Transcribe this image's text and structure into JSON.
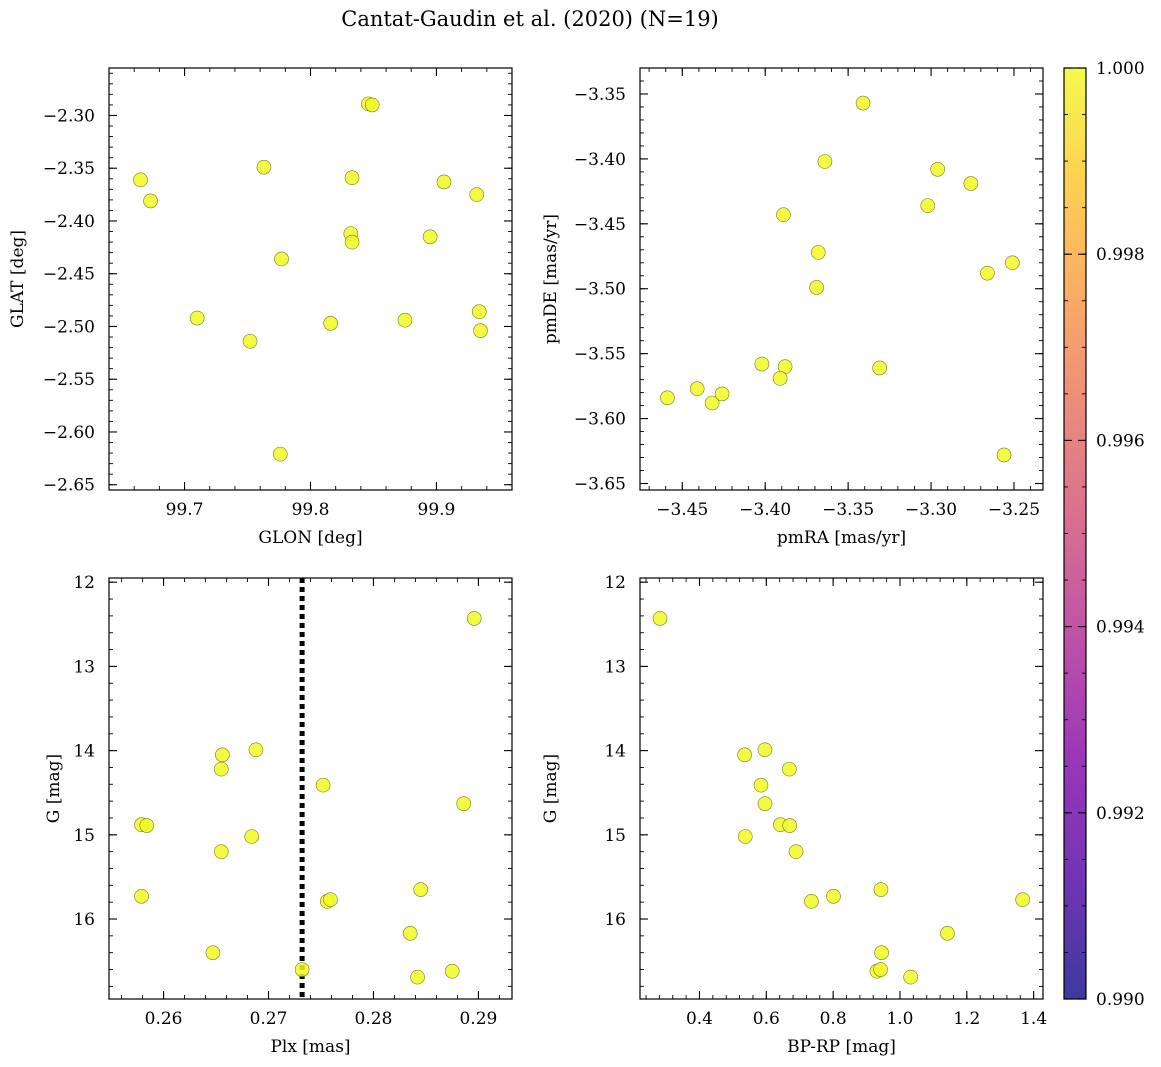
{
  "figure": {
    "title": "Cantat-Gaudin et al. (2020) (N=19)"
  },
  "colors": {
    "marker": "#f0f921",
    "marker_edge": "#7a7a2a",
    "frame": "#000000"
  },
  "chart_data": [
    {
      "type": "scatter",
      "xlabel": "GLON [deg]",
      "ylabel": "GLAT [deg]",
      "xlim": [
        99.64,
        99.96
      ],
      "ylim": [
        -2.655,
        -2.255
      ],
      "xticks": [
        99.7,
        99.8,
        99.9
      ],
      "xtick_labels": [
        "99.7",
        "99.8",
        "99.9"
      ],
      "yticks": [
        -2.3,
        -2.35,
        -2.4,
        -2.45,
        -2.5,
        -2.55,
        -2.6,
        -2.65
      ],
      "ytick_labels": [
        "−2.30",
        "−2.35",
        "−2.40",
        "−2.45",
        "−2.50",
        "−2.55",
        "−2.60",
        "−2.65"
      ],
      "x": [
        99.665,
        99.673,
        99.71,
        99.752,
        99.763,
        99.776,
        99.777,
        99.816,
        99.832,
        99.833,
        99.833,
        99.846,
        99.849,
        99.875,
        99.895,
        99.906,
        99.932,
        99.934,
        99.935
      ],
      "y": [
        -2.361,
        -2.381,
        -2.492,
        -2.514,
        -2.349,
        -2.621,
        -2.436,
        -2.497,
        -2.412,
        -2.42,
        -2.359,
        -2.289,
        -2.29,
        -2.494,
        -2.415,
        -2.363,
        -2.375,
        -2.486,
        -2.504
      ]
    },
    {
      "type": "scatter",
      "xlabel": "pmRA [mas/yr]",
      "ylabel": "pmDE [mas/yr]",
      "xlim": [
        -3.4755,
        -3.2325
      ],
      "ylim": [
        -3.655,
        -3.33
      ],
      "xticks": [
        -3.45,
        -3.4,
        -3.35,
        -3.3,
        -3.25
      ],
      "xtick_labels": [
        "−3.45",
        "−3.40",
        "−3.35",
        "−3.30",
        "−3.25"
      ],
      "yticks": [
        -3.35,
        -3.4,
        -3.45,
        -3.5,
        -3.55,
        -3.6,
        -3.65
      ],
      "ytick_labels": [
        "−3.35",
        "−3.40",
        "−3.45",
        "−3.50",
        "−3.55",
        "−3.60",
        "−3.65"
      ],
      "x": [
        -3.459,
        -3.441,
        -3.432,
        -3.426,
        -3.402,
        -3.389,
        -3.388,
        -3.391,
        -3.368,
        -3.369,
        -3.364,
        -3.341,
        -3.331,
        -3.302,
        -3.296,
        -3.276,
        -3.266,
        -3.256,
        -3.251
      ],
      "y": [
        -3.584,
        -3.577,
        -3.588,
        -3.581,
        -3.558,
        -3.443,
        -3.56,
        -3.569,
        -3.472,
        -3.499,
        -3.402,
        -3.357,
        -3.561,
        -3.436,
        -3.408,
        -3.419,
        -3.488,
        -3.628,
        -3.48
      ]
    },
    {
      "type": "scatter",
      "xlabel": "Plx [mas]",
      "ylabel": "G [mag]",
      "xlim": [
        0.2548,
        0.2932
      ],
      "ylim": [
        16.95,
        11.95
      ],
      "invert_y": true,
      "xticks": [
        0.26,
        0.27,
        0.28,
        0.29
      ],
      "xtick_labels": [
        "0.26",
        "0.27",
        "0.28",
        "0.29"
      ],
      "yticks": [
        12,
        13,
        14,
        15,
        16
      ],
      "ytick_labels": [
        "12",
        "13",
        "14",
        "15",
        "16"
      ],
      "vline": {
        "x": 0.2732,
        "style": "dotted"
      },
      "x": [
        0.2579,
        0.2584,
        0.2579,
        0.2647,
        0.2655,
        0.2656,
        0.2655,
        0.2684,
        0.2688,
        0.2732,
        0.2752,
        0.2756,
        0.2759,
        0.2835,
        0.2842,
        0.2845,
        0.2875,
        0.2886,
        0.2896
      ],
      "y": [
        14.88,
        14.89,
        15.73,
        16.4,
        14.22,
        14.05,
        15.2,
        15.02,
        13.99,
        16.6,
        14.41,
        15.79,
        15.77,
        16.17,
        16.69,
        15.65,
        16.62,
        14.63,
        12.43
      ]
    },
    {
      "type": "scatter",
      "xlabel": "BP-RP [mag]",
      "ylabel": "G [mag]",
      "xlim": [
        0.222,
        1.428
      ],
      "ylim": [
        16.95,
        11.95
      ],
      "invert_y": true,
      "xticks": [
        0.4,
        0.6,
        0.8,
        1.0,
        1.2,
        1.4
      ],
      "xtick_labels": [
        "0.4",
        "0.6",
        "0.8",
        "1.0",
        "1.2",
        "1.4"
      ],
      "yticks": [
        12,
        13,
        14,
        15,
        16
      ],
      "ytick_labels": [
        "12",
        "13",
        "14",
        "15",
        "16"
      ],
      "x": [
        0.282,
        0.535,
        0.537,
        0.596,
        0.584,
        0.596,
        0.669,
        0.642,
        0.67,
        0.689,
        0.735,
        0.801,
        0.943,
        0.945,
        0.931,
        0.942,
        1.032,
        1.142,
        1.367
      ],
      "y": [
        12.43,
        14.05,
        15.02,
        13.99,
        14.41,
        14.63,
        14.22,
        14.88,
        14.89,
        15.2,
        15.79,
        15.73,
        15.65,
        16.4,
        16.62,
        16.6,
        16.69,
        16.17,
        15.77
      ]
    }
  ],
  "colorbar": {
    "colormap": "plasma",
    "range": [
      0.99,
      1.0
    ],
    "ticks": [
      0.99,
      0.992,
      0.994,
      0.996,
      0.998,
      1.0
    ],
    "tick_labels": [
      "0.990",
      "0.992",
      "0.994",
      "0.996",
      "0.998",
      "1.000"
    ]
  }
}
